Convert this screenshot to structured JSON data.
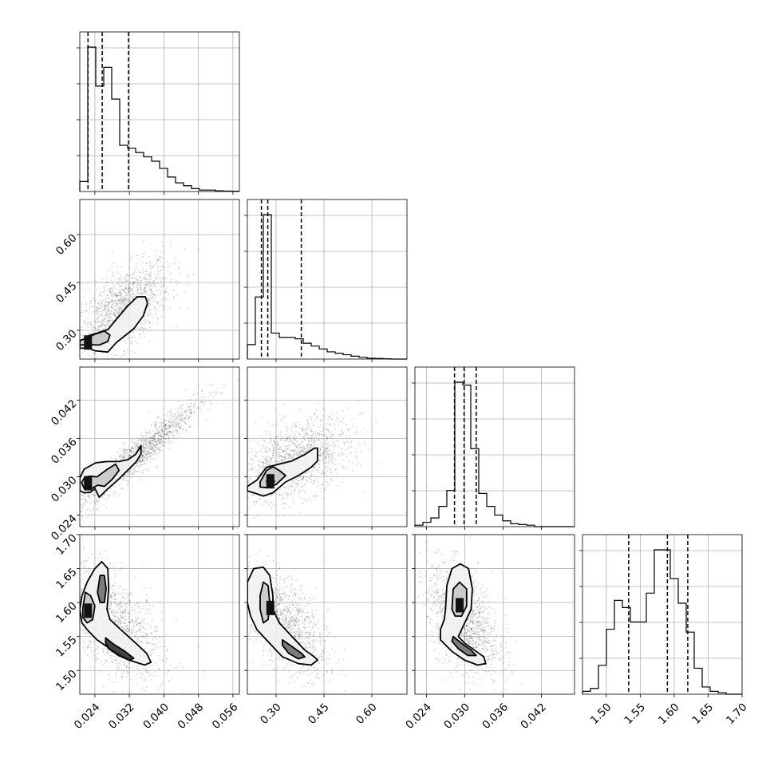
{
  "chart_data": {
    "type": "corner",
    "title": "",
    "background": "#ffffff",
    "ink": "#000000",
    "grid": true,
    "n_params": 4,
    "params": [
      {
        "index": 0,
        "xlabel": "",
        "ylabel": "",
        "range": [
          0.0205,
          0.0575
        ],
        "ticks": [
          0.024,
          0.032,
          0.04,
          0.048,
          0.056
        ],
        "tick_labels": [
          "0.024",
          "0.032",
          "0.040",
          "0.048",
          "0.056"
        ],
        "quantiles": [
          0.0224,
          0.0257,
          0.0318
        ],
        "hist": [
          0.07,
          1.0,
          0.73,
          0.86,
          0.64,
          0.32,
          0.3,
          0.27,
          0.24,
          0.21,
          0.16,
          0.1,
          0.06,
          0.04,
          0.02,
          0.01,
          0.01,
          0.005,
          0.003,
          0.002
        ]
      },
      {
        "index": 1,
        "xlabel": "",
        "ylabel": "",
        "range": [
          0.21,
          0.71
        ],
        "ticks": [
          0.3,
          0.45,
          0.6
        ],
        "tick_labels": [
          "0.30",
          "0.45",
          "0.60"
        ],
        "quantiles": [
          0.254,
          0.274,
          0.379
        ],
        "hist": [
          0.1,
          0.43,
          1.0,
          0.18,
          0.15,
          0.15,
          0.14,
          0.11,
          0.09,
          0.07,
          0.05,
          0.04,
          0.03,
          0.02,
          0.012,
          0.006,
          0.004,
          0.002,
          0.0,
          0.0
        ]
      },
      {
        "index": 2,
        "xlabel": "",
        "ylabel": "",
        "range": [
          0.0222,
          0.0472
        ],
        "ticks": [
          0.024,
          0.03,
          0.036,
          0.042
        ],
        "tick_labels": [
          "0.024",
          "0.030",
          "0.036",
          "0.042"
        ],
        "quantiles": [
          0.0284,
          0.0299,
          0.0318
        ],
        "hist": [
          0.01,
          0.03,
          0.06,
          0.14,
          0.25,
          1.0,
          0.98,
          0.54,
          0.23,
          0.14,
          0.08,
          0.04,
          0.02,
          0.015,
          0.01,
          0.0,
          0.0,
          0.0,
          0.0,
          0.0
        ]
      },
      {
        "index": 3,
        "xlabel": "",
        "ylabel": "",
        "range": [
          1.465,
          1.7
        ],
        "ticks": [
          1.5,
          1.55,
          1.6,
          1.65,
          1.7
        ],
        "tick_labels": [
          "1.50",
          "1.55",
          "1.60",
          "1.65",
          "1.70"
        ],
        "y_ticks": [
          1.5,
          1.55,
          1.6,
          1.65,
          1.7
        ],
        "y_tick_labels": [
          "1.50",
          "1.55",
          "1.60",
          "1.65",
          "1.70"
        ],
        "quantiles": [
          1.533,
          1.59,
          1.62
        ],
        "hist": [
          0.02,
          0.04,
          0.2,
          0.45,
          0.65,
          0.6,
          0.5,
          0.5,
          0.7,
          1.0,
          1.0,
          0.8,
          0.63,
          0.43,
          0.18,
          0.05,
          0.02,
          0.01,
          0.0,
          0.0
        ]
      }
    ],
    "panels": [
      {
        "row": 1,
        "col": 0,
        "center": [
          0.0224,
          0.262
        ],
        "contours": [
          [
            [
              0.0205,
              0.262
            ],
            [
              0.0225,
              0.283
            ],
            [
              0.027,
              0.302
            ],
            [
              0.029,
              0.335
            ],
            [
              0.0315,
              0.375
            ],
            [
              0.0338,
              0.405
            ],
            [
              0.0357,
              0.405
            ],
            [
              0.0362,
              0.385
            ],
            [
              0.0352,
              0.345
            ],
            [
              0.033,
              0.305
            ],
            [
              0.029,
              0.262
            ],
            [
              0.027,
              0.232
            ],
            [
              0.024,
              0.236
            ],
            [
              0.0225,
              0.244
            ],
            [
              0.0205,
              0.244
            ]
          ],
          [
            [
              0.0205,
              0.268
            ],
            [
              0.0225,
              0.278
            ],
            [
              0.024,
              0.288
            ],
            [
              0.0262,
              0.298
            ],
            [
              0.0275,
              0.285
            ],
            [
              0.027,
              0.265
            ],
            [
              0.025,
              0.254
            ],
            [
              0.0228,
              0.255
            ],
            [
              0.0205,
              0.254
            ]
          ],
          [
            [
              0.0218,
              0.262
            ],
            [
              0.0224,
              0.272
            ],
            [
              0.0232,
              0.262
            ],
            [
              0.0224,
              0.253
            ]
          ]
        ],
        "scatter": {
          "cx": 0.0305,
          "cy": 0.365,
          "sx": 0.0055,
          "sy": 0.075,
          "rho": 0.6
        }
      },
      {
        "row": 2,
        "col": 0,
        "center": [
          0.0224,
          0.029
        ],
        "contours": [
          [
            [
              0.0205,
              0.0298
            ],
            [
              0.0215,
              0.0312
            ],
            [
              0.0242,
              0.0322
            ],
            [
              0.0268,
              0.0324
            ],
            [
              0.0296,
              0.0324
            ],
            [
              0.0317,
              0.0327
            ],
            [
              0.0334,
              0.0335
            ],
            [
              0.0343,
              0.0344
            ],
            [
              0.0347,
              0.0349
            ],
            [
              0.0347,
              0.0336
            ],
            [
              0.0335,
              0.0323
            ],
            [
              0.0296,
              0.0297
            ],
            [
              0.0268,
              0.028
            ],
            [
              0.025,
              0.0268
            ],
            [
              0.024,
              0.0282
            ],
            [
              0.023,
              0.0276
            ],
            [
              0.0215,
              0.0275
            ],
            [
              0.0205,
              0.0278
            ]
          ],
          [
            [
              0.0209,
              0.0291
            ],
            [
              0.0217,
              0.03
            ],
            [
              0.023,
              0.0301
            ],
            [
              0.0245,
              0.03
            ],
            [
              0.0267,
              0.0311
            ],
            [
              0.0288,
              0.032
            ],
            [
              0.0296,
              0.031
            ],
            [
              0.028,
              0.0296
            ],
            [
              0.0262,
              0.0285
            ],
            [
              0.0247,
              0.0287
            ],
            [
              0.023,
              0.0281
            ],
            [
              0.0215,
              0.0282
            ]
          ],
          [
            [
              0.0218,
              0.029
            ],
            [
              0.0224,
              0.0296
            ],
            [
              0.0231,
              0.029
            ],
            [
              0.0224,
              0.0284
            ]
          ]
        ],
        "scatter": {
          "cx": 0.034,
          "cy": 0.0335,
          "sx": 0.007,
          "sy": 0.0042,
          "rho": 0.94
        }
      },
      {
        "row": 2,
        "col": 1,
        "center": [
          0.282,
          0.0293
        ],
        "contours": [
          [
            [
              0.21,
              0.0285
            ],
            [
              0.24,
              0.0295
            ],
            [
              0.27,
              0.0315
            ],
            [
              0.31,
              0.032
            ],
            [
              0.35,
              0.0325
            ],
            [
              0.39,
              0.0335
            ],
            [
              0.42,
              0.0345
            ],
            [
              0.43,
              0.0345
            ],
            [
              0.43,
              0.0325
            ],
            [
              0.41,
              0.0315
            ],
            [
              0.37,
              0.0302
            ],
            [
              0.33,
              0.0292
            ],
            [
              0.29,
              0.0275
            ],
            [
              0.26,
              0.027
            ],
            [
              0.23,
              0.0275
            ],
            [
              0.21,
              0.0278
            ]
          ],
          [
            [
              0.25,
              0.0292
            ],
            [
              0.27,
              0.031
            ],
            [
              0.29,
              0.0316
            ],
            [
              0.31,
              0.031
            ],
            [
              0.33,
              0.0302
            ],
            [
              0.3,
              0.0288
            ],
            [
              0.27,
              0.0283
            ],
            [
              0.25,
              0.0284
            ]
          ],
          [
            [
              0.27,
              0.0293
            ],
            [
              0.282,
              0.0302
            ],
            [
              0.295,
              0.0293
            ],
            [
              0.282,
              0.0284
            ]
          ]
        ],
        "scatter": {
          "cx": 0.36,
          "cy": 0.0325,
          "sx": 0.085,
          "sy": 0.0032,
          "rho": 0.45
        }
      },
      {
        "row": 3,
        "col": 0,
        "center": [
          0.0224,
          1.588
        ],
        "contours": [
          [
            [
              0.0205,
              1.59
            ],
            [
              0.021,
              1.61
            ],
            [
              0.0222,
              1.63
            ],
            [
              0.024,
              1.65
            ],
            [
              0.0256,
              1.66
            ],
            [
              0.027,
              1.65
            ],
            [
              0.0272,
              1.62
            ],
            [
              0.0268,
              1.59
            ],
            [
              0.0275,
              1.575
            ],
            [
              0.03,
              1.56
            ],
            [
              0.0335,
              1.54
            ],
            [
              0.036,
              1.525
            ],
            [
              0.037,
              1.512
            ],
            [
              0.0355,
              1.508
            ],
            [
              0.032,
              1.515
            ],
            [
              0.028,
              1.53
            ],
            [
              0.0245,
              1.545
            ],
            [
              0.0222,
              1.56
            ],
            [
              0.021,
              1.57
            ]
          ],
          [
            [
              0.0212,
              1.592
            ],
            [
              0.0218,
              1.615
            ],
            [
              0.023,
              1.61
            ],
            [
              0.024,
              1.595
            ],
            [
              0.0235,
              1.575
            ],
            [
              0.0222,
              1.57
            ],
            [
              0.0212,
              1.578
            ]
          ],
          [
            [
              0.0246,
              1.615
            ],
            [
              0.0252,
              1.64
            ],
            [
              0.0262,
              1.64
            ],
            [
              0.0266,
              1.62
            ],
            [
              0.0262,
              1.6
            ],
            [
              0.0252,
              1.6
            ]
          ],
          [
            [
              0.0265,
              1.548
            ],
            [
              0.0285,
              1.538
            ],
            [
              0.031,
              1.528
            ],
            [
              0.033,
              1.518
            ],
            [
              0.032,
              1.515
            ],
            [
              0.0295,
              1.522
            ],
            [
              0.0272,
              1.532
            ],
            [
              0.0265,
              1.54
            ]
          ]
        ],
        "scatter": {
          "cx": 0.028,
          "cy": 1.57,
          "sx": 0.006,
          "sy": 0.042,
          "rho": -0.55
        }
      },
      {
        "row": 3,
        "col": 1,
        "center": [
          0.282,
          1.592
        ],
        "contours": [
          [
            [
              0.21,
              1.63
            ],
            [
              0.23,
              1.65
            ],
            [
              0.26,
              1.652
            ],
            [
              0.28,
              1.64
            ],
            [
              0.29,
              1.61
            ],
            [
              0.29,
              1.59
            ],
            [
              0.31,
              1.57
            ],
            [
              0.35,
              1.55
            ],
            [
              0.39,
              1.53
            ],
            [
              0.42,
              1.52
            ],
            [
              0.43,
              1.515
            ],
            [
              0.41,
              1.508
            ],
            [
              0.37,
              1.51
            ],
            [
              0.32,
              1.52
            ],
            [
              0.28,
              1.54
            ],
            [
              0.24,
              1.56
            ],
            [
              0.22,
              1.58
            ],
            [
              0.21,
              1.6
            ]
          ],
          [
            [
              0.25,
              1.61
            ],
            [
              0.26,
              1.63
            ],
            [
              0.275,
              1.625
            ],
            [
              0.28,
              1.6
            ],
            [
              0.275,
              1.575
            ],
            [
              0.26,
              1.57
            ],
            [
              0.25,
              1.59
            ]
          ],
          [
            [
              0.32,
              1.545
            ],
            [
              0.35,
              1.535
            ],
            [
              0.38,
              1.525
            ],
            [
              0.39,
              1.52
            ],
            [
              0.37,
              1.517
            ],
            [
              0.34,
              1.525
            ],
            [
              0.32,
              1.537
            ]
          ]
        ],
        "scatter": {
          "cx": 0.32,
          "cy": 1.57,
          "sx": 0.07,
          "sy": 0.04,
          "rho": -0.6
        }
      },
      {
        "row": 3,
        "col": 2,
        "center": [
          0.0292,
          1.596
        ],
        "contours": [
          [
            [
              0.027,
              1.59
            ],
            [
              0.0272,
              1.625
            ],
            [
              0.028,
              1.65
            ],
            [
              0.0293,
              1.657
            ],
            [
              0.0306,
              1.65
            ],
            [
              0.0312,
              1.62
            ],
            [
              0.031,
              1.59
            ],
            [
              0.03,
              1.57
            ],
            [
              0.029,
              1.55
            ],
            [
              0.03,
              1.54
            ],
            [
              0.0315,
              1.53
            ],
            [
              0.033,
              1.52
            ],
            [
              0.0333,
              1.51
            ],
            [
              0.032,
              1.508
            ],
            [
              0.03,
              1.515
            ],
            [
              0.028,
              1.528
            ],
            [
              0.0262,
              1.545
            ],
            [
              0.0262,
              1.56
            ],
            [
              0.0268,
              1.575
            ]
          ],
          [
            [
              0.028,
              1.59
            ],
            [
              0.0282,
              1.62
            ],
            [
              0.0292,
              1.63
            ],
            [
              0.0303,
              1.62
            ],
            [
              0.0303,
              1.595
            ],
            [
              0.0295,
              1.58
            ],
            [
              0.0285,
              1.58
            ]
          ],
          [
            [
              0.0282,
              1.55
            ],
            [
              0.0295,
              1.54
            ],
            [
              0.031,
              1.53
            ],
            [
              0.0318,
              1.522
            ],
            [
              0.0305,
              1.522
            ],
            [
              0.029,
              1.532
            ],
            [
              0.028,
              1.543
            ]
          ]
        ],
        "scatter": {
          "cx": 0.0298,
          "cy": 1.575,
          "sx": 0.0028,
          "sy": 0.04,
          "rho": -0.45
        }
      }
    ]
  }
}
